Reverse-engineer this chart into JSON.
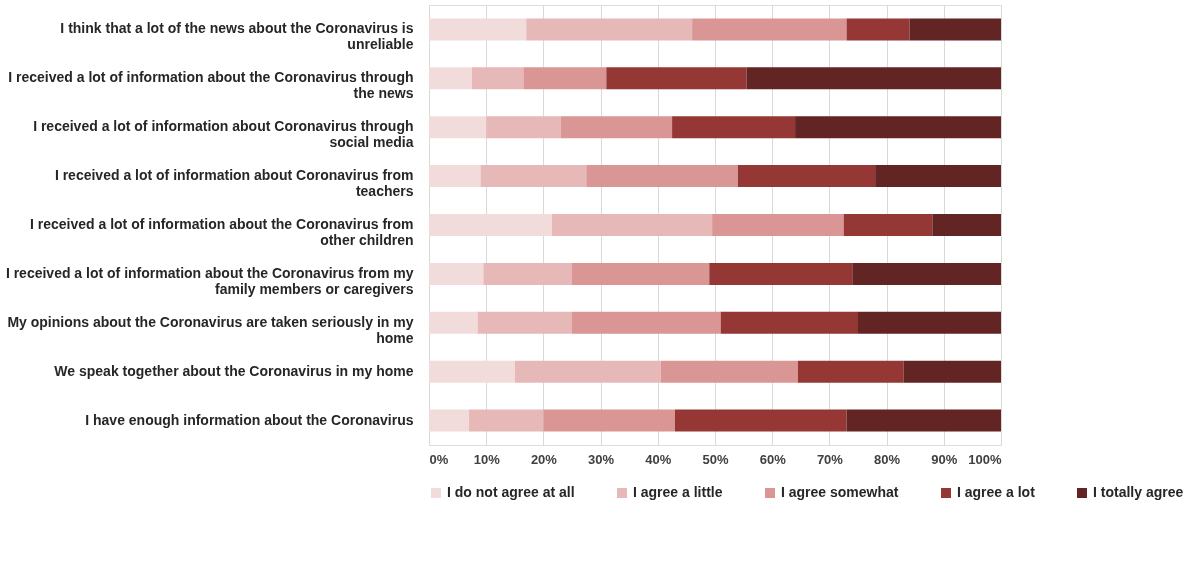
{
  "chart_data": {
    "type": "bar",
    "orientation": "horizontal",
    "stacked": true,
    "categories": [
      "I think that a lot of the news about the Coronavirus is unreliable",
      "I received a lot of information about the Coronavirus through the news",
      "I received a lot of information about Coronavirus through social media",
      "I received a lot of information about Coronavirus from teachers",
      "I received a lot of information about the Coronavirus from other children",
      "I received a lot of information about the Coronavirus from my family members or caregivers",
      "My opinions about the Coronavirus are taken seriously in my home",
      "We speak together about the Coronavirus in my home",
      "I have enough information about the Coronavirus"
    ],
    "series": [
      {
        "name": "I do not agree at all",
        "color": "#f2dcdb",
        "values": [
          17,
          7.5,
          10,
          9,
          21.5,
          9.5,
          8.5,
          15,
          7
        ]
      },
      {
        "name": "I agree a little",
        "color": "#e6b9b8",
        "values": [
          29,
          9,
          13,
          18.5,
          28,
          15.5,
          16.5,
          25.5,
          13
        ]
      },
      {
        "name": "I agree somewhat",
        "color": "#d99694",
        "values": [
          27,
          14.5,
          19.5,
          26.5,
          23,
          24,
          26,
          24,
          23
        ]
      },
      {
        "name": "I agree a lot",
        "color": "#953735",
        "values": [
          11,
          24.5,
          21.5,
          24,
          15.5,
          25,
          24,
          18.5,
          30
        ]
      },
      {
        "name": "I totally agree",
        "color": "#632523",
        "values": [
          16,
          44.5,
          36,
          22,
          12,
          26,
          25,
          17,
          27
        ]
      }
    ],
    "xlim": [
      0,
      100
    ],
    "xticks": [
      {
        "value": 0,
        "label": "0%"
      },
      {
        "value": 10,
        "label": "10%"
      },
      {
        "value": 20,
        "label": "20%"
      },
      {
        "value": 30,
        "label": "30%"
      },
      {
        "value": 40,
        "label": "40%"
      },
      {
        "value": 50,
        "label": "50%"
      },
      {
        "value": 60,
        "label": "60%"
      },
      {
        "value": 70,
        "label": "70%"
      },
      {
        "value": 80,
        "label": "80%"
      },
      {
        "value": 90,
        "label": "90%"
      },
      {
        "value": 100,
        "label": "100%"
      }
    ],
    "grid": "x",
    "legend": "bottom"
  }
}
